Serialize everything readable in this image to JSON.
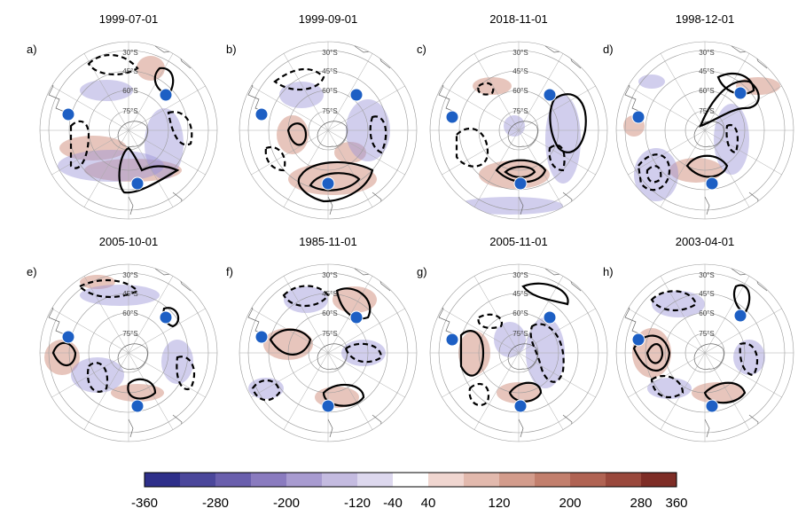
{
  "panels": [
    {
      "label": "a)",
      "date": "1999-07-01"
    },
    {
      "label": "b)",
      "date": "1999-09-01"
    },
    {
      "label": "c)",
      "date": "2018-11-01"
    },
    {
      "label": "d)",
      "date": "1998-12-01"
    },
    {
      "label": "e)",
      "date": "2005-10-01"
    },
    {
      "label": "f)",
      "date": "1985-11-01"
    },
    {
      "label": "g)",
      "date": "2005-11-01"
    },
    {
      "label": "h)",
      "date": "2003-04-01"
    }
  ],
  "latitude_labels": [
    "30°S",
    "45°S",
    "60°S",
    "75°S"
  ],
  "colorbar": {
    "ticks": [
      "-360",
      "-280",
      "-200",
      "-120",
      "-40",
      "40",
      "120",
      "200",
      "280",
      "360"
    ],
    "colors": [
      "#2e2f8a",
      "#4b479b",
      "#6a5fad",
      "#8a7bbf",
      "#a89bd0",
      "#c4bbe0",
      "#ddd8ee",
      "#ffffff",
      "#f0d6d0",
      "#e2b9ad",
      "#d39c8c",
      "#c27f6d",
      "#b06353",
      "#99483c",
      "#7e2d26"
    ]
  },
  "colors": {
    "positive": "#c97f6a",
    "negative": "#9a93d6",
    "marker": "#1d5fc4"
  }
}
